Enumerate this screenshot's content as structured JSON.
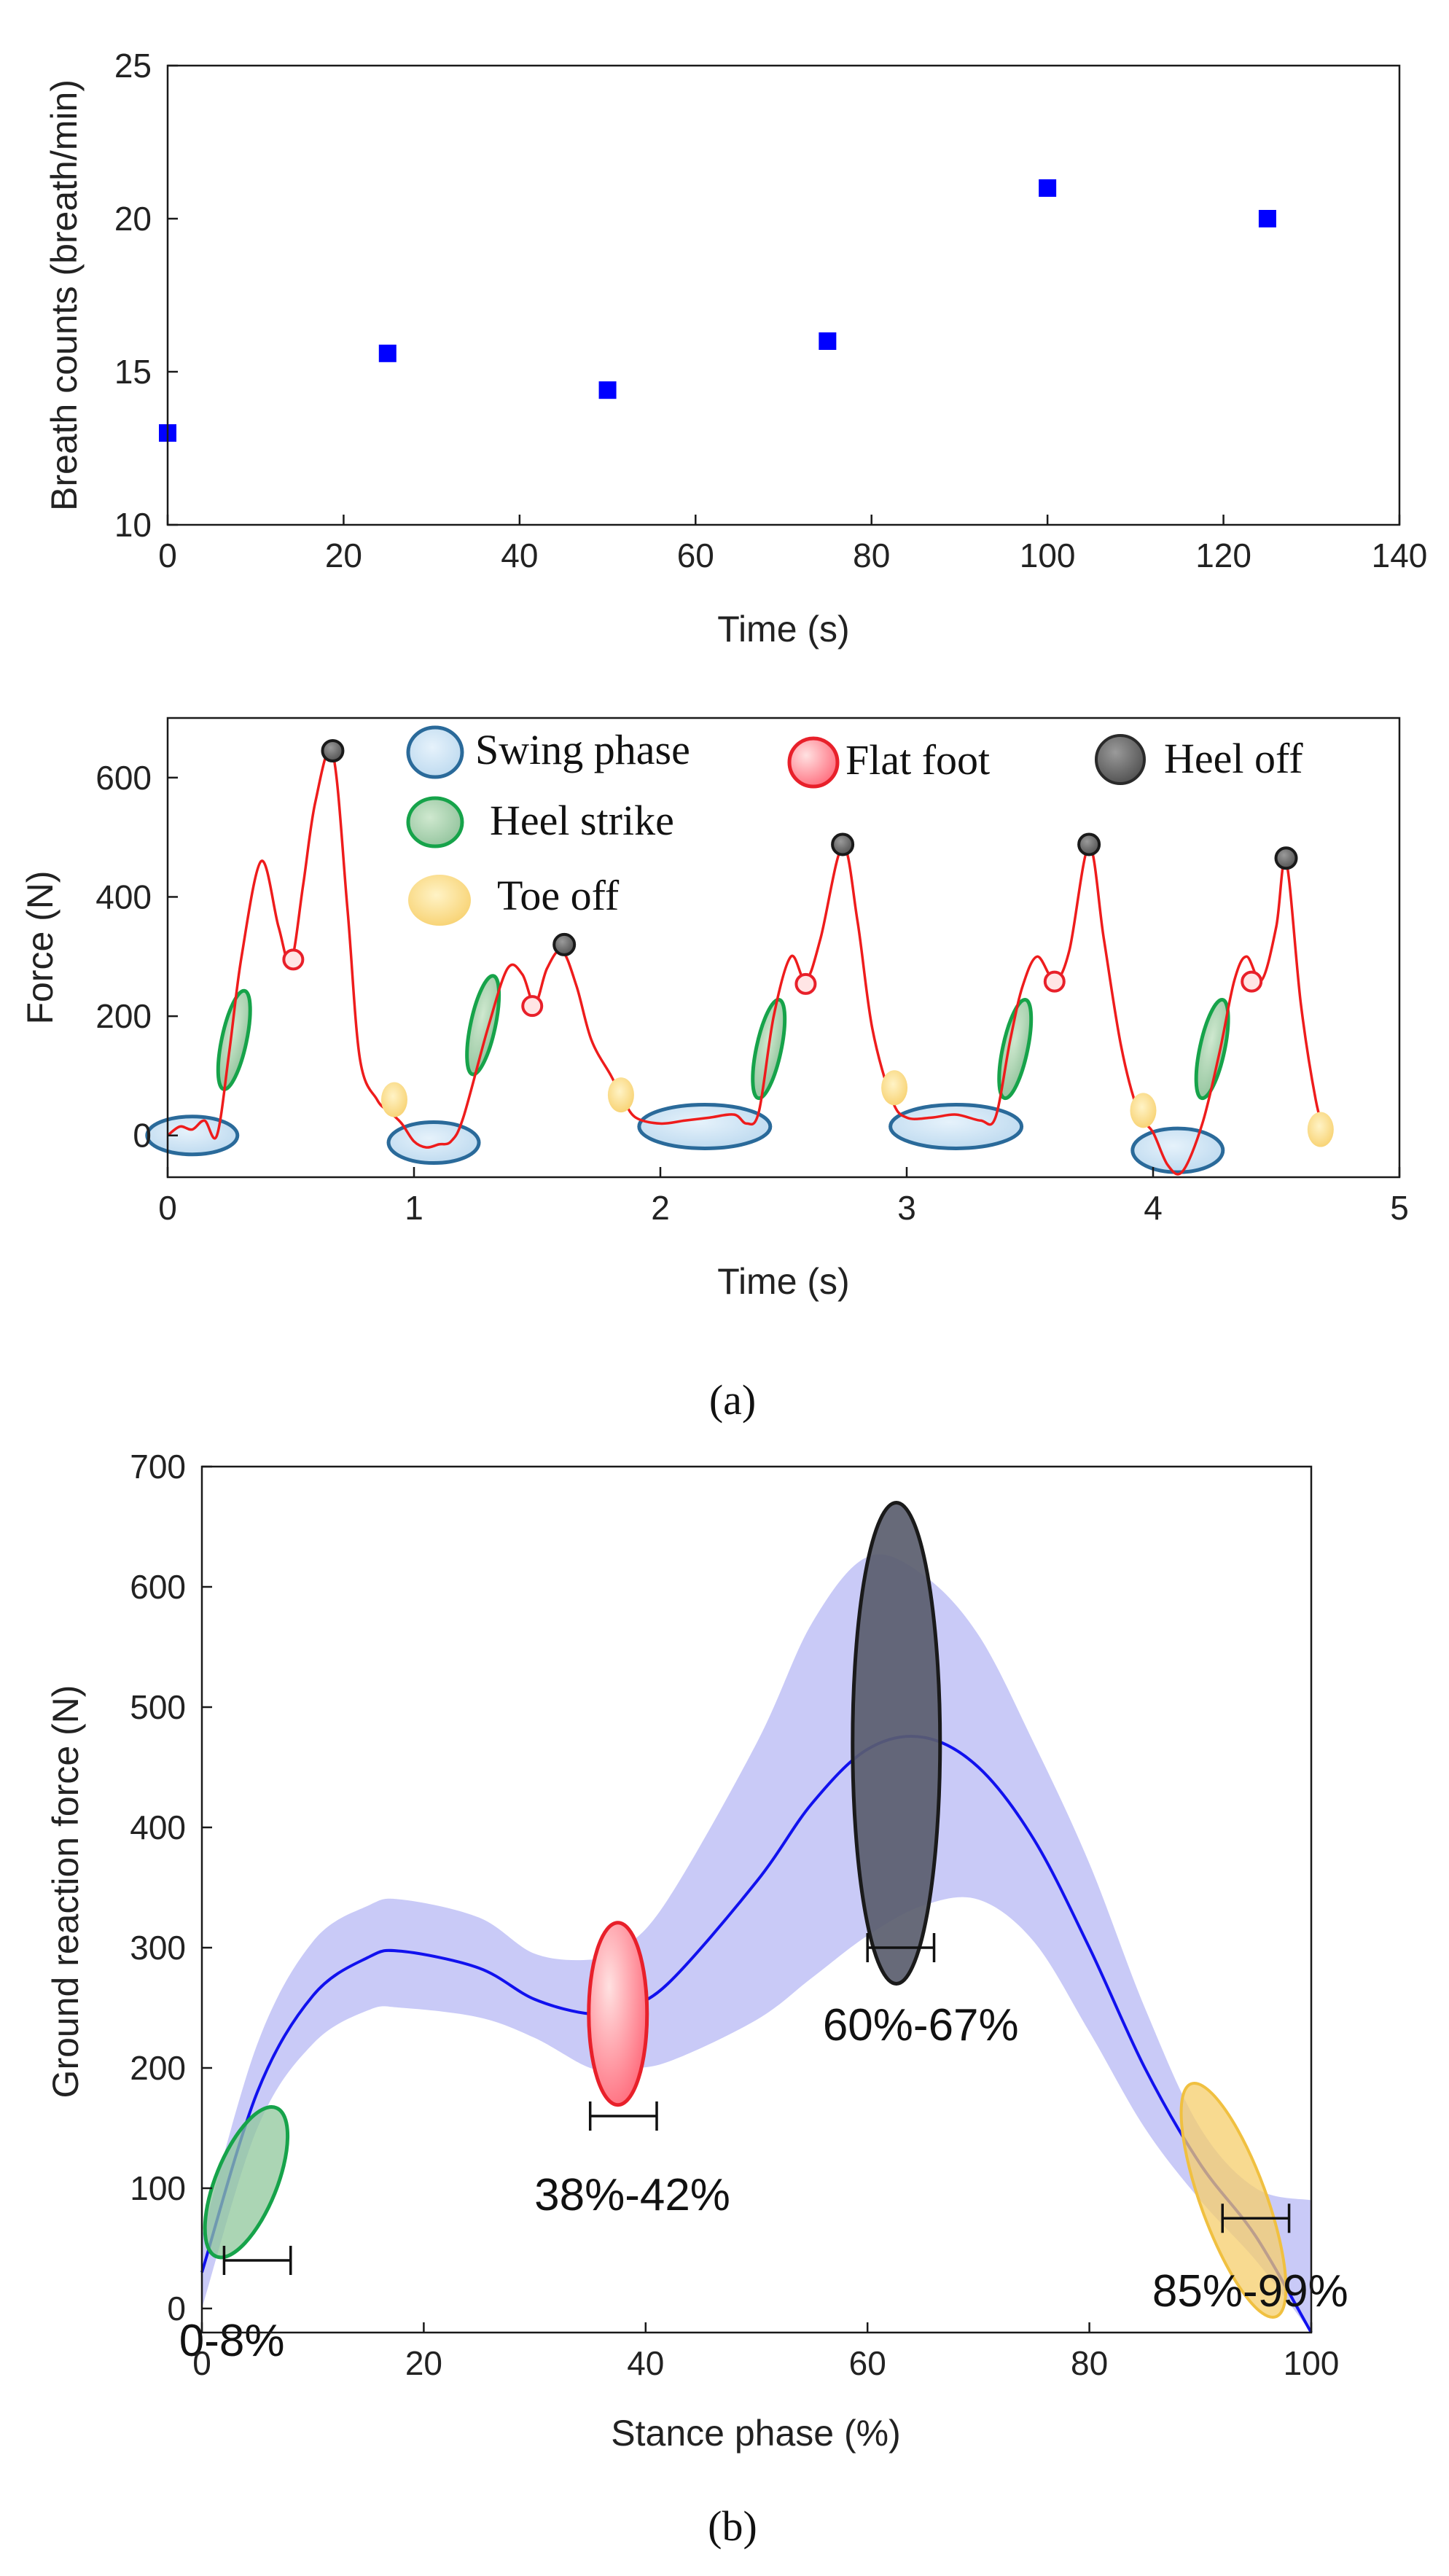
{
  "panel_a_label": "(a)",
  "panel_b_label": "(b)",
  "chart_data": [
    {
      "type": "scatter",
      "xlabel": "Time (s)",
      "ylabel": "Breath counts (breath/min)",
      "xlim": [
        0,
        140
      ],
      "ylim": [
        10,
        25
      ],
      "xticks": [
        0,
        20,
        40,
        60,
        80,
        100,
        120,
        140
      ],
      "yticks": [
        10,
        15,
        20,
        25
      ],
      "marker": "square",
      "color": "#0000ff",
      "x": [
        0,
        25,
        50,
        75,
        100,
        125
      ],
      "y": [
        13,
        15.6,
        14.4,
        16,
        21,
        20
      ]
    },
    {
      "type": "line",
      "xlabel": "Time (s)",
      "ylabel": "Force (N)",
      "xlim": [
        0,
        5
      ],
      "ylim": [
        -70,
        700
      ],
      "xticks": [
        0,
        1,
        2,
        3,
        4,
        5
      ],
      "yticks": [
        0,
        200,
        400,
        600
      ],
      "color": "#ee1c1c",
      "x": [
        0,
        0.05,
        0.1,
        0.15,
        0.2,
        0.25,
        0.3,
        0.38,
        0.45,
        0.5,
        0.55,
        0.6,
        0.67,
        0.73,
        0.78,
        0.85,
        0.9,
        0.95,
        1.0,
        1.05,
        1.1,
        1.15,
        1.2,
        1.3,
        1.38,
        1.44,
        1.49,
        1.54,
        1.6,
        1.66,
        1.72,
        1.8,
        1.85,
        1.9,
        2.0,
        2.1,
        2.2,
        2.3,
        2.35,
        2.4,
        2.46,
        2.53,
        2.59,
        2.65,
        2.74,
        2.8,
        2.86,
        2.94,
        3.0,
        3.1,
        3.2,
        3.3,
        3.36,
        3.42,
        3.47,
        3.53,
        3.6,
        3.66,
        3.74,
        3.8,
        3.87,
        3.94,
        4.0,
        4.06,
        4.12,
        4.2,
        4.27,
        4.33,
        4.38,
        4.44,
        4.5,
        4.54,
        4.6,
        4.66,
        4.7
      ],
      "y": [
        0,
        15,
        10,
        25,
        0,
        140,
        300,
        460,
        350,
        290,
        420,
        560,
        640,
        380,
        130,
        60,
        40,
        20,
        -10,
        -20,
        -15,
        -10,
        30,
        180,
        280,
        270,
        220,
        280,
        310,
        250,
        160,
        100,
        60,
        30,
        20,
        25,
        30,
        35,
        20,
        40,
        200,
        300,
        260,
        330,
        485,
        360,
        180,
        60,
        30,
        30,
        35,
        25,
        30,
        160,
        250,
        300,
        260,
        310,
        485,
        330,
        150,
        40,
        5,
        -50,
        -60,
        20,
        140,
        260,
        300,
        260,
        350,
        460,
        220,
        60,
        0
      ],
      "annotations": {
        "legend": [
          "Swing phase",
          "Flat foot",
          "Heel off",
          "Heel strike",
          "Toe off"
        ],
        "heel_off_points": [
          [
            0.67,
            645
          ],
          [
            1.61,
            320
          ],
          [
            2.74,
            488
          ],
          [
            3.74,
            488
          ],
          [
            4.54,
            465
          ]
        ],
        "flat_foot_points": [
          [
            0.51,
            295
          ],
          [
            1.48,
            217
          ],
          [
            2.59,
            254
          ],
          [
            3.6,
            258
          ],
          [
            4.4,
            258
          ]
        ],
        "toe_off_points": [
          [
            0.92,
            60
          ],
          [
            1.84,
            68
          ],
          [
            2.95,
            80
          ],
          [
            3.96,
            42
          ],
          [
            4.68,
            10
          ]
        ]
      }
    },
    {
      "type": "area",
      "xlabel": "Stance phase (%)",
      "ylabel": "Ground reaction force (N)",
      "xlim": [
        0,
        100
      ],
      "ylim": [
        -20,
        700
      ],
      "xticks": [
        0,
        20,
        40,
        60,
        80,
        100
      ],
      "yticks": [
        0,
        100,
        200,
        300,
        400,
        500,
        600,
        700
      ],
      "mean_color": "#1111ee",
      "band_color": "#c9caf7",
      "x": [
        0,
        5,
        10,
        15,
        18,
        25,
        30,
        35,
        38,
        42,
        50,
        55,
        60,
        65,
        70,
        75,
        80,
        85,
        90,
        95,
        100
      ],
      "mean": [
        30,
        180,
        260,
        292,
        297,
        283,
        257,
        245,
        250,
        270,
        355,
        420,
        465,
        475,
        450,
        390,
        300,
        200,
        120,
        60,
        -20
      ],
      "upper": [
        60,
        220,
        305,
        335,
        340,
        325,
        295,
        290,
        300,
        340,
        470,
        570,
        625,
        610,
        560,
        470,
        370,
        250,
        150,
        100,
        90
      ],
      "lower": [
        0,
        150,
        220,
        248,
        250,
        242,
        225,
        200,
        200,
        205,
        240,
        275,
        310,
        335,
        340,
        305,
        230,
        150,
        90,
        40,
        -20
      ],
      "annotations": [
        {
          "label": "0-8%",
          "range": [
            2,
            8
          ],
          "phase": "Heel strike"
        },
        {
          "label": "38%-42%",
          "range": [
            35,
            41
          ],
          "phase": "Flat foot"
        },
        {
          "label": "60%-67%",
          "range": [
            60,
            66
          ],
          "phase": "Heel off"
        },
        {
          "label": "85%-99%",
          "range": [
            92,
            98
          ],
          "phase": "Toe off"
        }
      ]
    }
  ]
}
